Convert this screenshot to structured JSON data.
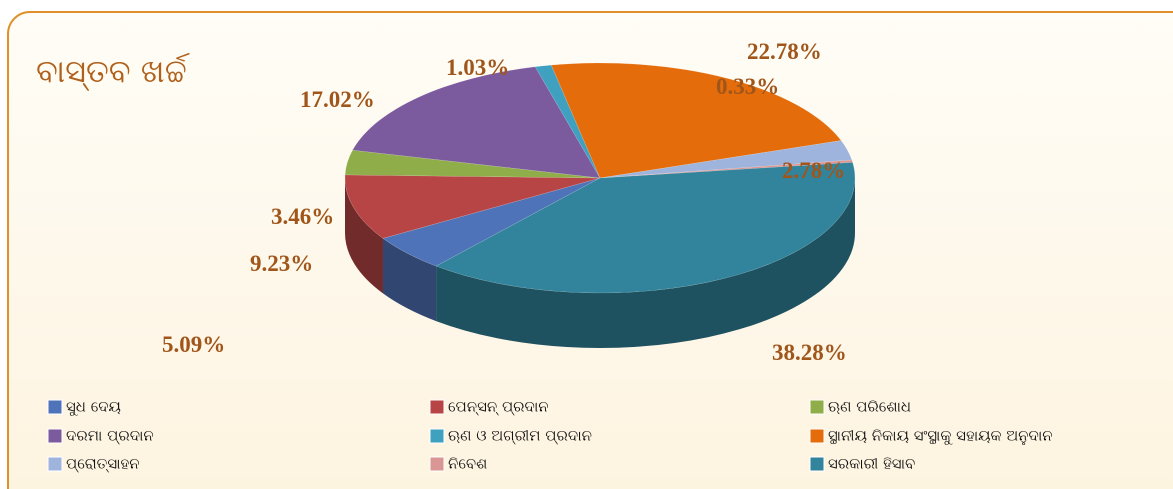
{
  "chart_data": {
    "type": "pie3d",
    "title": "ବାସ୍ତବ ଖର୍ଚ୍ଚ",
    "categories": [
      "ସୁଧ ଦେୟ",
      "ପେନ୍ସନ୍ ପ୍ରଦାନ",
      "ଋଣ ପରିଶୋଧ",
      "ଦରମା ପ୍ରଦାନ",
      "ଋଣ ଓ ଅଗ୍ରୀମ ପ୍ରଦାନ",
      "ସ୍ଥାନୀୟ ନିକାୟ ସଂସ୍ଥାକୁ ସହାୟକ ଅନୁଦାନ",
      "ପ୍ରୋତ୍ସାହନ",
      "ନିବେଶ",
      "ସରକାରୀ ହିସାବ"
    ],
    "values": [
      5.09,
      9.23,
      3.46,
      17.02,
      1.03,
      22.78,
      2.78,
      0.33,
      38.28
    ],
    "value_labels": [
      "5.09%",
      "9.23%",
      "3.46%",
      "17.02%",
      "1.03%",
      "22.78%",
      "2.78%",
      "0.33%",
      "38.28%"
    ],
    "colors": [
      "#4f73b8",
      "#b84545",
      "#8fae4a",
      "#7b5a9e",
      "#3fa0c0",
      "#e46c0a",
      "#9fb4dc",
      "#d99694",
      "#31849b"
    ],
    "legend": "bottom"
  }
}
